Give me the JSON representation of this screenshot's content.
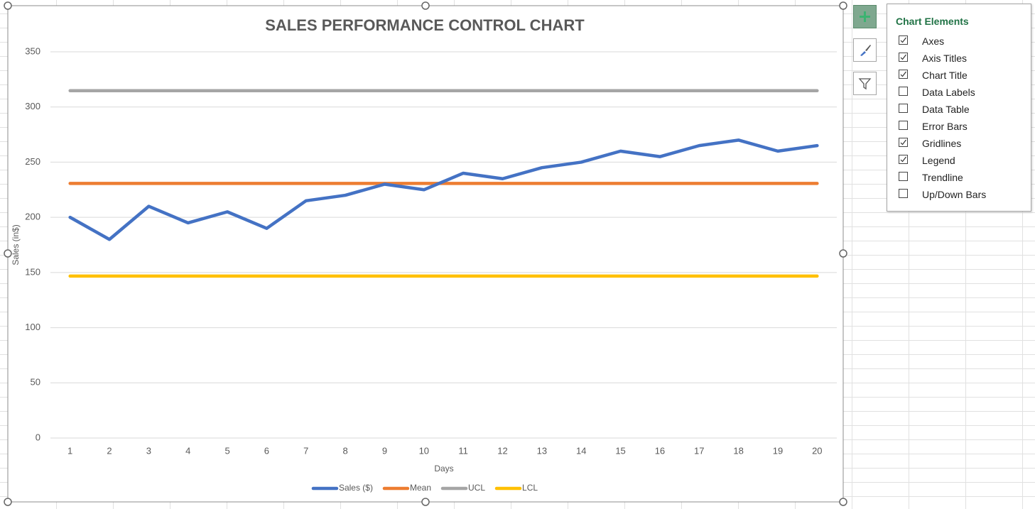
{
  "chart_data": {
    "type": "line",
    "title": "SALES PERFORMANCE CONTROL CHART",
    "x_label": "Days",
    "y_label": "Sales (in$)",
    "categories": [
      "1",
      "2",
      "3",
      "4",
      "5",
      "6",
      "7",
      "8",
      "9",
      "10",
      "11",
      "12",
      "13",
      "14",
      "15",
      "16",
      "17",
      "18",
      "19",
      "20"
    ],
    "series": [
      {
        "name": "Sales ($)",
        "color": "#4472c4",
        "values": [
          200,
          180,
          210,
          195,
          205,
          190,
          215,
          220,
          230,
          225,
          240,
          235,
          245,
          250,
          260,
          255,
          265,
          270,
          260,
          265
        ]
      },
      {
        "name": "Mean",
        "color": "#ed7d31",
        "values": [
          230.75,
          230.75,
          230.75,
          230.75,
          230.75,
          230.75,
          230.75,
          230.75,
          230.75,
          230.75,
          230.75,
          230.75,
          230.75,
          230.75,
          230.75,
          230.75,
          230.75,
          230.75,
          230.75,
          230.75
        ]
      },
      {
        "name": "UCL",
        "color": "#a5a5a5",
        "values": [
          314.75,
          314.75,
          314.75,
          314.75,
          314.75,
          314.75,
          314.75,
          314.75,
          314.75,
          314.75,
          314.75,
          314.75,
          314.75,
          314.75,
          314.75,
          314.75,
          314.75,
          314.75,
          314.75,
          314.75
        ]
      },
      {
        "name": "LCL",
        "color": "#ffc000",
        "values": [
          146.75,
          146.75,
          146.75,
          146.75,
          146.75,
          146.75,
          146.75,
          146.75,
          146.75,
          146.75,
          146.75,
          146.75,
          146.75,
          146.75,
          146.75,
          146.75,
          146.75,
          146.75,
          146.75,
          146.75
        ]
      }
    ],
    "ylim": [
      0,
      350
    ],
    "yticks": [
      0,
      50,
      100,
      150,
      200,
      250,
      300,
      350
    ],
    "grid": true,
    "legend": "bottom"
  },
  "chart_elements_panel": {
    "title": "Chart Elements",
    "items": [
      {
        "label": "Axes",
        "checked": true
      },
      {
        "label": "Axis Titles",
        "checked": true
      },
      {
        "label": "Chart Title",
        "checked": true
      },
      {
        "label": "Data Labels",
        "checked": false
      },
      {
        "label": "Data Table",
        "checked": false
      },
      {
        "label": "Error Bars",
        "checked": false
      },
      {
        "label": "Gridlines",
        "checked": true
      },
      {
        "label": "Legend",
        "checked": true
      },
      {
        "label": "Trendline",
        "checked": false
      },
      {
        "label": "Up/Down Bars",
        "checked": false
      }
    ]
  }
}
